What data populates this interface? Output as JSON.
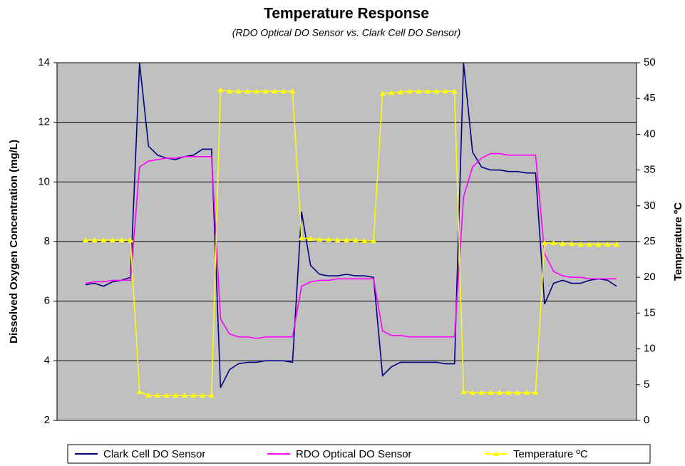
{
  "chart_data": {
    "type": "line",
    "title": "Temperature Response",
    "subtitle": "(RDO Optical DO Sensor vs. Clark Cell DO Sensor)",
    "ylabel": "Dissolved Oxygen Concentration (mg/L)",
    "y2label": "Temperature ºC",
    "categories": [
      null,
      null,
      null,
      null,
      null,
      null,
      null,
      null,
      null,
      null,
      null,
      null,
      null,
      null,
      null,
      null,
      null,
      null,
      null,
      null,
      null,
      null,
      null,
      null,
      null,
      null,
      null,
      null,
      null,
      null,
      null,
      null,
      null,
      null,
      null,
      null,
      null,
      null,
      null,
      null,
      null,
      null,
      null,
      null,
      null,
      null,
      null,
      null,
      null,
      null,
      null,
      null,
      null,
      null,
      null,
      null,
      null,
      null,
      null,
      null
    ],
    "ylim": [
      2,
      14
    ],
    "yticks": [
      2,
      4,
      6,
      8,
      10,
      12,
      14
    ],
    "y2lim": [
      0,
      50
    ],
    "y2ticks": [
      0,
      5,
      10,
      15,
      20,
      25,
      30,
      35,
      40,
      45,
      50
    ],
    "grid": true,
    "legend": "bottom",
    "background": "#c0c0c0",
    "series": [
      {
        "name": "Clark Cell DO Sensor",
        "color": "#000080",
        "values": [
          6.55,
          6.6,
          6.5,
          6.65,
          6.7,
          6.8,
          14,
          11.2,
          10.9,
          10.8,
          10.75,
          10.85,
          10.9,
          11.1,
          11.1,
          3.1,
          3.7,
          3.9,
          3.95,
          3.95,
          4.0,
          4.0,
          4.0,
          3.95,
          9.0,
          7.2,
          6.9,
          6.85,
          6.85,
          6.9,
          6.85,
          6.85,
          6.8,
          3.5,
          3.8,
          3.95,
          3.95,
          3.95,
          3.95,
          3.95,
          3.9,
          3.9,
          14,
          11.0,
          10.5,
          10.4,
          10.4,
          10.35,
          10.35,
          10.3,
          10.3,
          5.9,
          6.6,
          6.7,
          6.6,
          6.6,
          6.7,
          6.75,
          6.7,
          6.5
        ]
      },
      {
        "name": "RDO Optical DO Sensor",
        "color": "#ff00ff",
        "values": [
          6.6,
          6.65,
          6.65,
          6.7,
          6.7,
          6.7,
          10.5,
          10.7,
          10.75,
          10.8,
          10.8,
          10.85,
          10.85,
          10.85,
          10.85,
          5.4,
          4.9,
          4.8,
          4.8,
          4.75,
          4.8,
          4.8,
          4.8,
          4.8,
          6.5,
          6.65,
          6.7,
          6.7,
          6.75,
          6.75,
          6.75,
          6.75,
          6.75,
          5.0,
          4.85,
          4.85,
          4.8,
          4.8,
          4.8,
          4.8,
          4.8,
          4.8,
          9.5,
          10.5,
          10.8,
          10.95,
          10.95,
          10.9,
          10.9,
          10.9,
          10.9,
          7.6,
          7.0,
          6.85,
          6.8,
          6.8,
          6.75,
          6.75,
          6.75,
          6.75
        ]
      },
      {
        "name": "Temperature ºC",
        "color": "#ffff00",
        "axis": "y2",
        "marker": "triangle",
        "values": [
          25.2,
          25.2,
          25.2,
          25.2,
          25.2,
          25.2,
          4,
          3.5,
          3.5,
          3.5,
          3.5,
          3.5,
          3.5,
          3.5,
          3.5,
          46.2,
          46,
          46,
          46,
          46,
          46,
          46,
          46,
          46,
          25.5,
          25.4,
          25.3,
          25.3,
          25.2,
          25.2,
          25.2,
          25.1,
          25.1,
          45.7,
          45.8,
          45.9,
          46,
          46,
          46,
          46,
          46,
          46,
          4,
          3.9,
          3.9,
          3.9,
          3.9,
          3.9,
          3.9,
          3.9,
          3.9,
          24.8,
          24.8,
          24.7,
          24.7,
          24.6,
          24.6,
          24.6,
          24.6,
          24.6
        ]
      }
    ]
  }
}
